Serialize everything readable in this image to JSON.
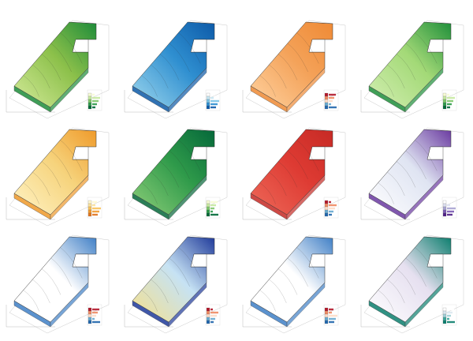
{
  "sheet": {
    "panels": [
      {
        "id": "p1",
        "fill": "#8cc04a",
        "hi": "#d6ec9c",
        "lo": "#1e8c3a",
        "legend": [
          "#f7fcd4",
          "#c7e9a0",
          "#7fc66b",
          "#2e9a4a",
          "#006837"
        ]
      },
      {
        "id": "p2",
        "fill": "#2f8fd0",
        "hi": "#9fd8ee",
        "lo": "#0d5aa8",
        "legend": [
          "#ffffff",
          "#c6e6f2",
          "#7ac3e6",
          "#2f8fd0",
          "#0d5aa8"
        ]
      },
      {
        "id": "p3",
        "fill": "#f4a259",
        "hi": "#ffd3a1",
        "lo": "#ef8a35",
        "legend": [
          "#b2182b",
          "#ef8a62",
          "#fddbc7",
          "#67a9cf",
          "#2166ac"
        ]
      },
      {
        "id": "p4",
        "fill": "#a3d977",
        "hi": "#d4efb3",
        "lo": "#1f8f3a",
        "legend": [
          "#f7fcd4",
          "#c7e9a0",
          "#7fc66b",
          "#2e9a4a",
          "#006837"
        ]
      },
      {
        "id": "p5",
        "fill": "#f6d37c",
        "hi": "#fff4c7",
        "lo": "#ef9a2a",
        "legend": [
          "#fff8d0",
          "#fde29a",
          "#f8c25a",
          "#f29a2e",
          "#e0731d"
        ]
      },
      {
        "id": "p6",
        "fill": "#2f9a4a",
        "hi": "#8fd07a",
        "lo": "#05683a",
        "legend": [
          "#f7fcd4",
          "#c7e9a0",
          "#7fc66b",
          "#2e9a4a",
          "#006837"
        ]
      },
      {
        "id": "p7",
        "fill": "#de3b33",
        "hi": "#ee6a5a",
        "lo": "#c62a25",
        "legend": [
          "#b2182b",
          "#ef8a62",
          "#fddbc7",
          "#67a9cf",
          "#2166ac"
        ]
      },
      {
        "id": "p8",
        "fill": "#dfe4f2",
        "hi": "#ffffff",
        "lo": "#6a3aa0",
        "legend": [
          "#ffffff",
          "#dcdff0",
          "#a8a4d2",
          "#7a5ab2",
          "#4f1f86"
        ]
      },
      {
        "id": "p9",
        "fill": "#ffffff",
        "hi": "#ffffff",
        "lo": "#3f7fc6",
        "legend": [
          "#b2182b",
          "#ef8a62",
          "#fddbc7",
          "#67a9cf",
          "#2166ac"
        ]
      },
      {
        "id": "p10",
        "fill": "#c6e2f4",
        "hi": "#f6e08a",
        "lo": "#1f3a9a",
        "legend": [
          "#b2182b",
          "#ef8a62",
          "#fddbc7",
          "#67a9cf",
          "#2166ac"
        ]
      },
      {
        "id": "p11",
        "fill": "#ffffff",
        "hi": "#ffffff",
        "lo": "#3f7fc6",
        "legend": [
          "#b2182b",
          "#ef8a62",
          "#fddbc7",
          "#67a9cf",
          "#2166ac"
        ]
      },
      {
        "id": "p12",
        "fill": "#e6e0f0",
        "hi": "#ffffff",
        "lo": "#0c7e6e",
        "legend": [
          "#ffffff",
          "#dbe8f0",
          "#9fcfd6",
          "#3aa59a",
          "#0c7e6e"
        ]
      }
    ]
  }
}
